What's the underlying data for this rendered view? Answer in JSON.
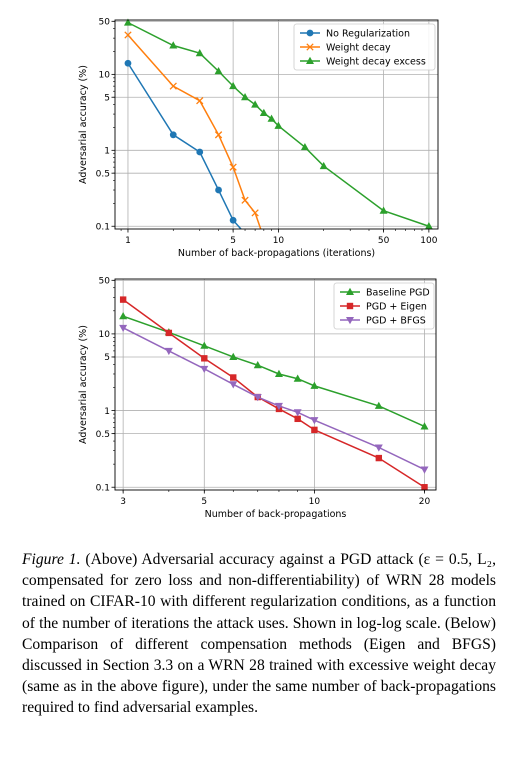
{
  "chart_data": [
    {
      "type": "line",
      "xscale": "log",
      "yscale": "log",
      "xlim": [
        0.82,
        115
      ],
      "ylim": [
        0.092,
        52
      ],
      "xticks": [
        1,
        5,
        10,
        50,
        100
      ],
      "xtick_labels": [
        "1",
        "5",
        "10",
        "50",
        "100"
      ],
      "yticks": [
        0.1,
        0.5,
        1,
        5,
        10,
        50
      ],
      "ytick_labels": [
        "0.1",
        "0.5",
        "1",
        "5",
        "10",
        "50"
      ],
      "xlabel": "Number of back-propagations (iterations)",
      "ylabel": "Adversarial accuracy (%)",
      "grid": true,
      "legend": "top-right",
      "series": [
        {
          "name": "No Regularization",
          "color": "#1f77b4",
          "marker": "circle",
          "points": [
            [
              1,
              14
            ],
            [
              2,
              1.6
            ],
            [
              3,
              0.95
            ],
            [
              4,
              0.3
            ],
            [
              5,
              0.12
            ],
            [
              6,
              0.08
            ]
          ]
        },
        {
          "name": "Weight decay",
          "color": "#ff7f0e",
          "marker": "x",
          "points": [
            [
              1,
              33
            ],
            [
              2,
              7
            ],
            [
              3,
              4.5
            ],
            [
              4,
              1.6
            ],
            [
              5,
              0.6
            ],
            [
              6,
              0.22
            ],
            [
              7,
              0.15
            ],
            [
              8,
              0.07
            ]
          ]
        },
        {
          "name": "Weight decay excess",
          "color": "#2ca02c",
          "marker": "triangle-up",
          "points": [
            [
              1,
              48
            ],
            [
              2,
              24
            ],
            [
              3,
              19
            ],
            [
              4,
              11
            ],
            [
              5,
              7
            ],
            [
              6,
              5
            ],
            [
              7,
              4
            ],
            [
              8,
              3.1
            ],
            [
              9,
              2.6
            ],
            [
              10,
              2.1
            ],
            [
              15,
              1.1
            ],
            [
              20,
              0.62
            ],
            [
              50,
              0.16
            ],
            [
              100,
              0.1
            ]
          ]
        }
      ]
    },
    {
      "type": "line",
      "xscale": "log",
      "yscale": "log",
      "xlim": [
        2.85,
        21.5
      ],
      "ylim": [
        0.092,
        52
      ],
      "xticks": [
        3,
        5,
        10,
        20
      ],
      "xtick_labels": [
        "3",
        "5",
        "10",
        "20"
      ],
      "yticks": [
        0.1,
        0.5,
        1,
        5,
        10,
        50
      ],
      "ytick_labels": [
        "0.1",
        "0.5",
        "1",
        "5",
        "10",
        "50"
      ],
      "xlabel": "Number of back-propagations",
      "ylabel": "Adversarial accuracy (%)",
      "grid": true,
      "legend": "top-right",
      "series": [
        {
          "name": "Baseline PGD",
          "color": "#2ca02c",
          "marker": "triangle-up",
          "points": [
            [
              3,
              17
            ],
            [
              4,
              10.5
            ],
            [
              5,
              7
            ],
            [
              6,
              5
            ],
            [
              7,
              3.9
            ],
            [
              8,
              3
            ],
            [
              9,
              2.6
            ],
            [
              10,
              2.1
            ],
            [
              15,
              1.15
            ],
            [
              20,
              0.62
            ]
          ]
        },
        {
          "name": "PGD + Eigen",
          "color": "#d62728",
          "marker": "square",
          "points": [
            [
              3,
              28
            ],
            [
              4,
              10.3
            ],
            [
              5,
              4.8
            ],
            [
              6,
              2.7
            ],
            [
              7,
              1.5
            ],
            [
              8,
              1.05
            ],
            [
              9,
              0.78
            ],
            [
              10,
              0.56
            ],
            [
              15,
              0.24
            ],
            [
              20,
              0.1
            ]
          ]
        },
        {
          "name": "PGD + BFGS",
          "color": "#9467bd",
          "marker": "triangle-down",
          "points": [
            [
              3,
              12
            ],
            [
              4,
              6
            ],
            [
              5,
              3.5
            ],
            [
              6,
              2.2
            ],
            [
              7,
              1.5
            ],
            [
              8,
              1.15
            ],
            [
              9,
              0.95
            ],
            [
              10,
              0.75
            ],
            [
              15,
              0.33
            ],
            [
              20,
              0.17
            ]
          ]
        }
      ]
    }
  ],
  "caption": {
    "lead": "Figure 1.",
    "text": " (Above) Adversarial accuracy against a PGD attack (ε = 0.5, L₂, compensated for zero loss and non-differentiability) of WRN 28 models trained on CIFAR-10 with different regularization conditions, as a function of the number of iterations the attack uses. Shown in log-log scale. (Below) Comparison of different compensation methods (Eigen and BFGS) discussed in Section 3.3 on a WRN 28 trained with excessive weight decay (same as in the above figure), under the same number of back-propagations required to find adversarial examples."
  }
}
